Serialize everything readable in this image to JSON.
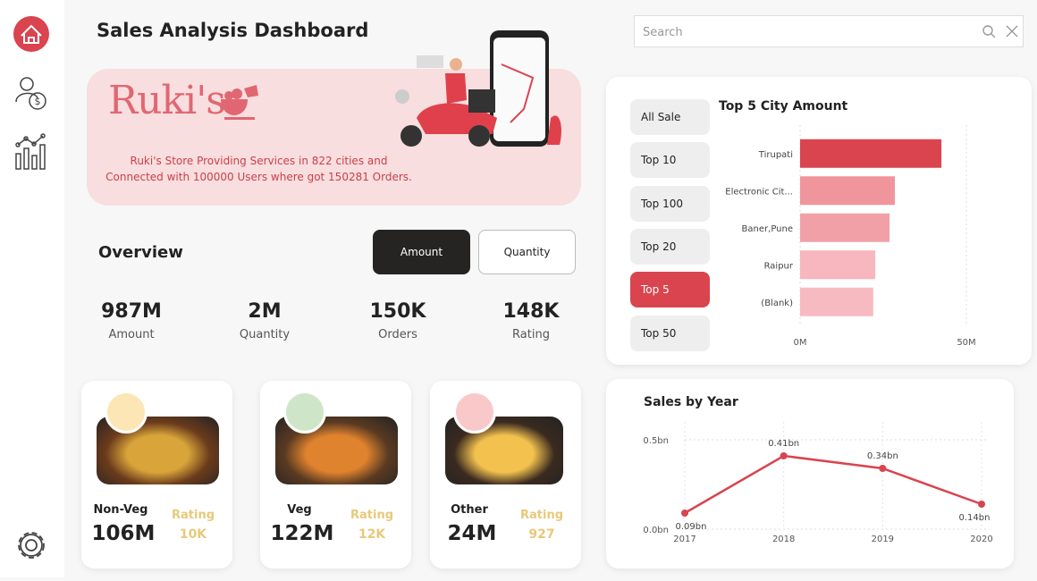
{
  "header": {
    "title": "Sales Analysis Dashboard"
  },
  "search": {
    "placeholder": "Search"
  },
  "banner": {
    "brand": "Ruki's",
    "text_lines": [
      "Ruki's Store Providing Services in 822 cities and",
      "Connected with 100000 Users where got 150281 Orders."
    ]
  },
  "overview": {
    "title": "Overview",
    "toggles": [
      "Amount",
      "Quantity"
    ],
    "active_toggle": "Amount",
    "kpis": [
      {
        "value": "987M",
        "label": "Amount"
      },
      {
        "value": "2M",
        "label": "Quantity"
      },
      {
        "value": "150K",
        "label": "Orders"
      },
      {
        "value": "148K",
        "label": "Rating"
      }
    ]
  },
  "food_categories": [
    {
      "name": "Non-Veg",
      "value": "106M",
      "rating_label": "Rating",
      "rating": "10K"
    },
    {
      "name": "Veg",
      "value": "122M",
      "rating_label": "Rating",
      "rating": "12K"
    },
    {
      "name": "Other",
      "value": "24M",
      "rating_label": "Rating",
      "rating": "927"
    }
  ],
  "filters": {
    "options": [
      "All Sale",
      "Top 10",
      "Top 100",
      "Top 20",
      "Top 5",
      "Top 50"
    ],
    "selected": "Top 5"
  },
  "city_chart": {
    "type": "bar",
    "orientation": "horizontal",
    "title": "Top 5 City Amount",
    "categories": [
      "Tirupati",
      "Electronic Cit...",
      "Baner,Pune",
      "Raipur",
      "(Blank)"
    ],
    "values": [
      42.5,
      28.5,
      26.9,
      22.6,
      22
    ],
    "colors": [
      "#d9444f",
      "#f0959c",
      "#f2a0a8",
      "#f8b6be",
      "#f8bac1"
    ],
    "xlim": [
      0,
      50
    ],
    "xticks": [
      {
        "value": 0,
        "label": "0M"
      },
      {
        "value": 50,
        "label": "50M"
      }
    ],
    "grid": true
  },
  "year_chart": {
    "type": "line",
    "title": "Sales by Year",
    "categories": [
      "2017",
      "2018",
      "2019",
      "2020"
    ],
    "values": [
      0.09,
      0.41,
      0.34,
      0.14
    ],
    "value_labels": [
      "0.09bn",
      "0.41bn",
      "0.34bn",
      "0.14bn"
    ],
    "color": "#d9444f",
    "ylim": [
      0,
      0.5
    ],
    "yticks": [
      {
        "value": 0,
        "label": "0.0bn"
      },
      {
        "value": 0.5,
        "label": "0.5bn"
      }
    ],
    "grid": true
  }
}
